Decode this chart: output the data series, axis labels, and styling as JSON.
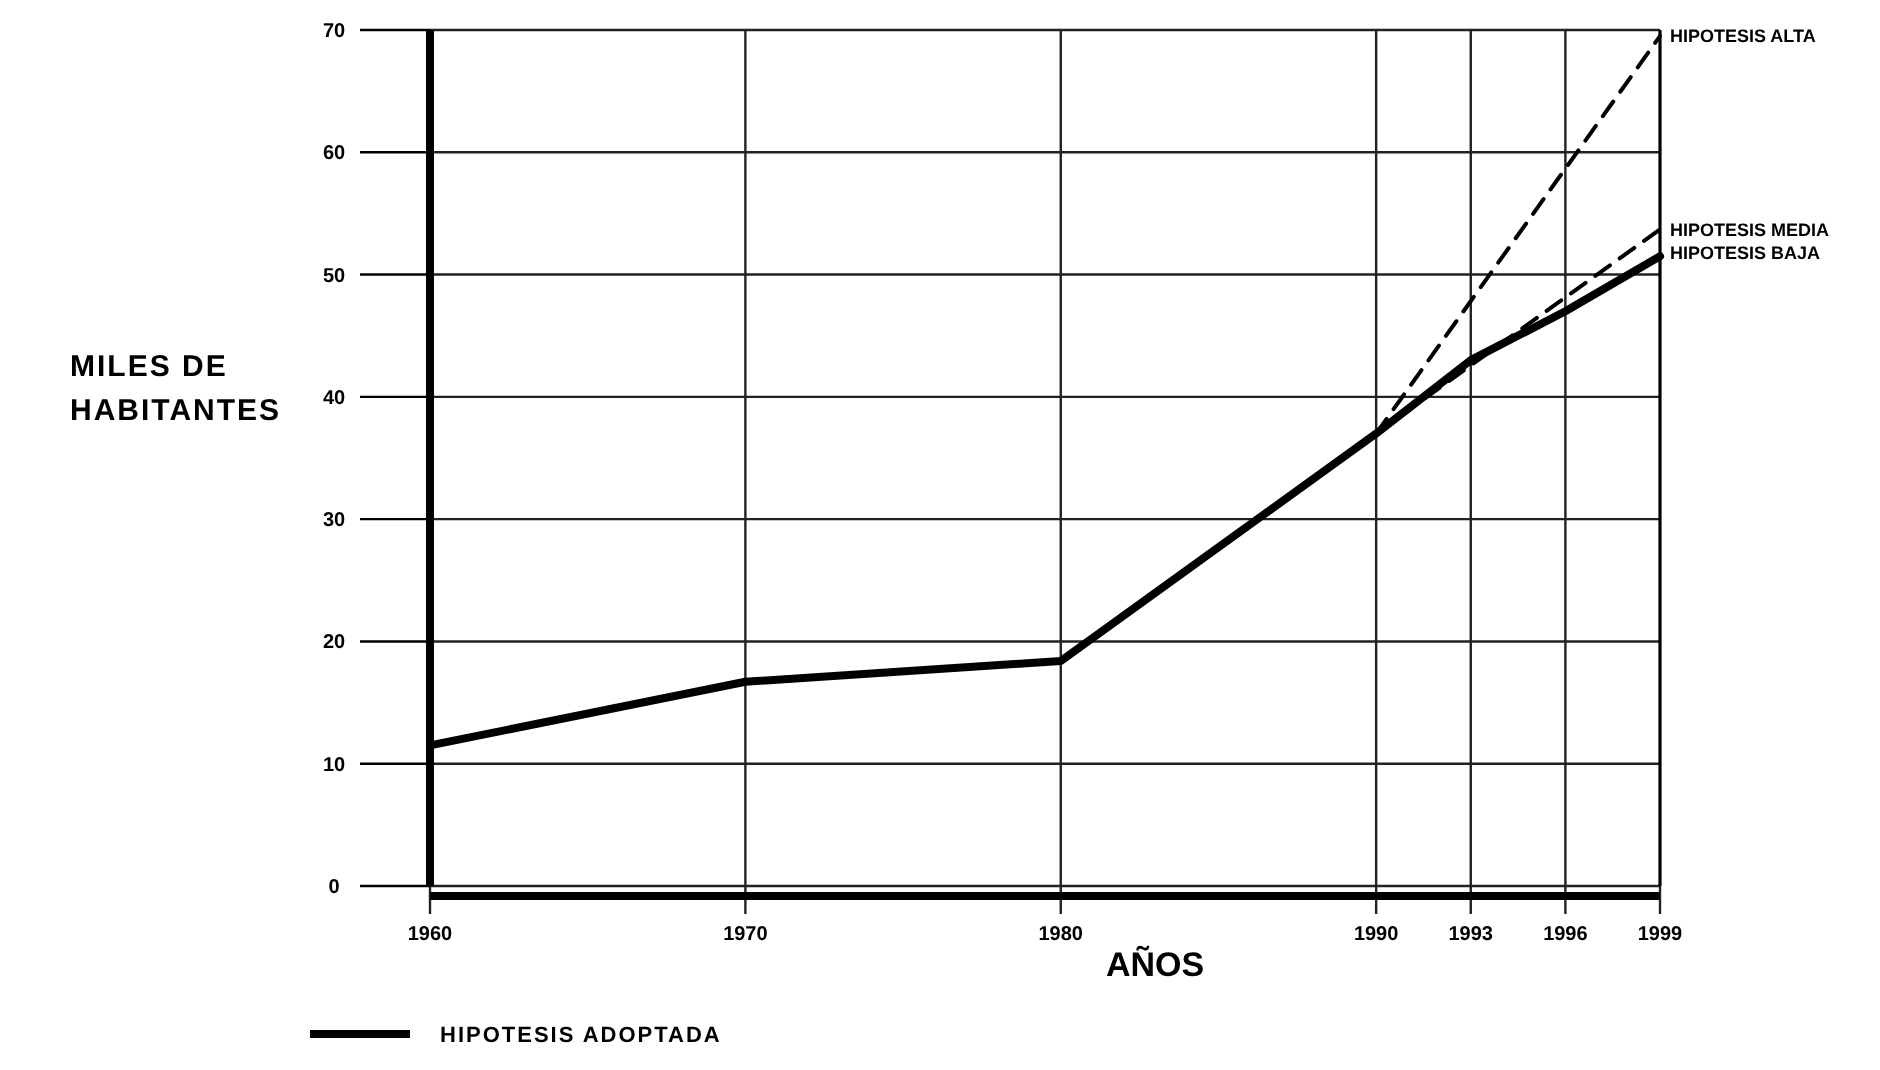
{
  "chart_data": {
    "type": "line",
    "xlabel": "AÑOS",
    "ylabel": "MILES DE HABITANTES",
    "xlim": [
      1960,
      1999
    ],
    "xticks": [
      1960,
      1970,
      1980,
      1990,
      1993,
      1996,
      1999
    ],
    "ylim": [
      0,
      70
    ],
    "yticks": [
      0,
      10,
      20,
      30,
      40,
      50,
      60,
      70
    ],
    "grid": true,
    "legend": "bottom left",
    "series": [
      {
        "name": "HIPOTESIS ADOPTADA",
        "color": "#000000",
        "line_style": "solid",
        "x": [
          1960,
          1970,
          1980,
          1990,
          1993,
          1996,
          1999
        ],
        "values": [
          11.5,
          16.7,
          18.4,
          37,
          43,
          47,
          51.5
        ]
      },
      {
        "name": "HIPOTESIS ALTA",
        "color": "#000000",
        "line_style": "dashed",
        "x": [
          1990,
          1999
        ],
        "values": [
          37,
          69.5
        ]
      },
      {
        "name": "HIPOTESIS MEDIA",
        "color": "#000000",
        "line_style": "dashed",
        "x": [
          1990,
          1999
        ],
        "values": [
          37,
          53.7
        ]
      }
    ],
    "annotations": [
      {
        "text": "HIPOTESIS BAJA",
        "x": 1999,
        "y": 51.5
      }
    ]
  }
}
